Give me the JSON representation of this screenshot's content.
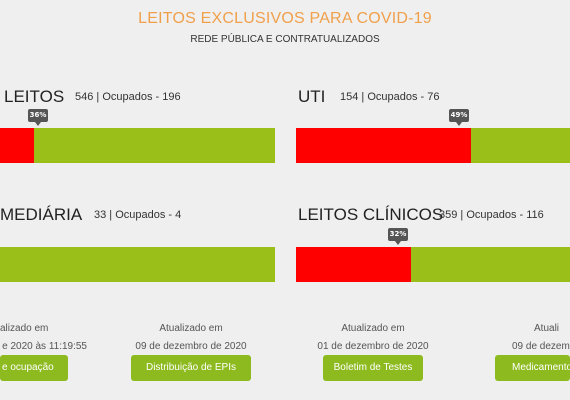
{
  "header": {
    "title": "LEITOS EXCLUSIVOS PARA COVID-19",
    "subtitle": "REDE PÚBLICA E CONTRATUALIZADOS"
  },
  "colors": {
    "title": "#f0a04b",
    "occupied": "#ff0000",
    "free": "#99bf18",
    "button": "#8dba1f",
    "tag": "#555555"
  },
  "panels": {
    "leitos": {
      "label": "LEITOS",
      "stats": "546 | Ocupados - 196",
      "total": 546,
      "occupied": 196,
      "percent_label": "36%",
      "occupancy_percent": 36
    },
    "uti": {
      "label": "UTI",
      "stats": "154 | Ocupados - 76",
      "total": 154,
      "occupied": 76,
      "percent_label": "49%",
      "occupancy_percent": 49
    },
    "intermediaria": {
      "label": "MEDIÁRIA",
      "stats": "33 | Ocupados - 4",
      "total": 33,
      "occupied": 4
    },
    "clinicos": {
      "label": "LEITOS CLÍNICOS",
      "stats": "359 | Ocupados - 116",
      "total": 359,
      "occupied": 116,
      "percent_label": "32%",
      "occupancy_percent": 32
    }
  },
  "updates": [
    {
      "label": "alizado em",
      "date": "e 2020 às 11:19:55",
      "button": "e ocupação"
    },
    {
      "label": "Atualizado em",
      "date": "09 de dezembro de 2020",
      "button": "Distribuição de EPIs"
    },
    {
      "label": "Atualizado em",
      "date": "01 de dezembro de 2020",
      "button": "Boletim de Testes"
    },
    {
      "label": "Atuali",
      "date": "09 de dezemb",
      "button": "Medicamento"
    }
  ]
}
